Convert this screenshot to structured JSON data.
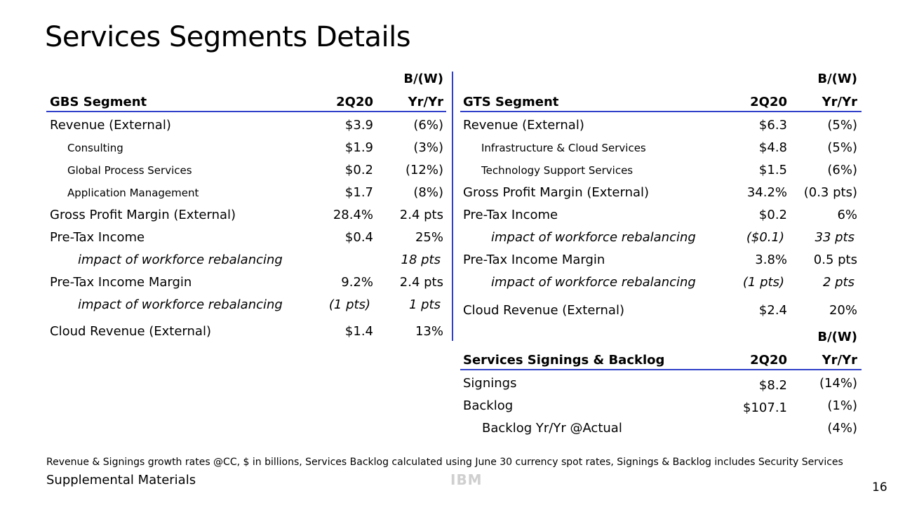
{
  "title": "Services Segments Details",
  "gbs": {
    "bw_label": "B/(W)",
    "header": {
      "label": "GBS Segment",
      "period": "2Q20",
      "yr": "Yr/Yr"
    },
    "rows": [
      {
        "label": "Revenue (External)",
        "v": "$3.9",
        "y": "(6%)"
      },
      {
        "label": "Consulting",
        "v": "$1.9",
        "y": "(3%)"
      },
      {
        "label": "Global Process Services",
        "v": "$0.2",
        "y": "(12%)"
      },
      {
        "label": "Application Management",
        "v": "$1.7",
        "y": "(8%)"
      },
      {
        "label": "Gross Profit Margin (External)",
        "v": "28.4%",
        "y": "2.4 pts"
      },
      {
        "label": "Pre-Tax Income",
        "v": "$0.4",
        "y": "25%"
      },
      {
        "label": "impact of workforce rebalancing",
        "v": "",
        "y": "18 pts"
      },
      {
        "label": "Pre-Tax Income Margin",
        "v": "9.2%",
        "y": "2.4 pts"
      },
      {
        "label": "impact of workforce rebalancing",
        "v": "(1 pts)",
        "y": "1 pts"
      },
      {
        "label": "Cloud Revenue (External)",
        "v": "$1.4",
        "y": "13%"
      }
    ]
  },
  "gts": {
    "bw_label": "B/(W)",
    "header": {
      "label": "GTS Segment",
      "period": "2Q20",
      "yr": "Yr/Yr"
    },
    "rows": [
      {
        "label": "Revenue (External)",
        "v": "$6.3",
        "y": "(5%)"
      },
      {
        "label": "Infrastructure & Cloud Services",
        "v": "$4.8",
        "y": "(5%)"
      },
      {
        "label": "Technology Support Services",
        "v": "$1.5",
        "y": "(6%)"
      },
      {
        "label": "Gross Profit Margin (External)",
        "v": "34.2%",
        "y": "(0.3 pts)"
      },
      {
        "label": "Pre-Tax Income",
        "v": "$0.2",
        "y": "6%"
      },
      {
        "label": "impact of workforce rebalancing",
        "v": "($0.1)",
        "y": "33 pts"
      },
      {
        "label": "Pre-Tax Income Margin",
        "v": "3.8%",
        "y": "0.5 pts"
      },
      {
        "label": "impact of workforce rebalancing",
        "v": "(1 pts)",
        "y": "2 pts"
      },
      {
        "label": "Cloud Revenue (External)",
        "v": "$2.4",
        "y": "20%"
      }
    ]
  },
  "signings": {
    "bw_label": "B/(W)",
    "header": {
      "label": "Services Signings & Backlog",
      "period": "2Q20",
      "yr": "Yr/Yr"
    },
    "rows": [
      {
        "label": "Signings",
        "v": "$8.2",
        "y": "(14%)"
      },
      {
        "label": "Backlog",
        "v": "$107.1",
        "y": "(1%)"
      },
      {
        "label": "Backlog Yr/Yr @Actual",
        "v": "",
        "y": "(4%)"
      }
    ]
  },
  "footnote": "Revenue & Signings growth rates @CC, $ in billions, Services Backlog calculated using June 30 currency spot rates, Signings & Backlog includes Security Services",
  "supplemental": "Supplemental Materials",
  "logo_text": "IBM",
  "page_number": "16",
  "colors": {
    "rule": "#3040c8"
  }
}
